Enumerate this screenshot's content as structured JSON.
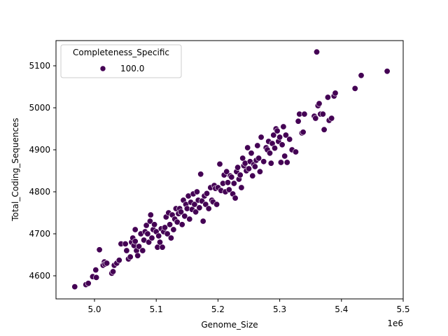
{
  "chart_data": {
    "type": "scatter",
    "title": "",
    "xlabel": "Genome_Size",
    "ylabel": "Total_Coding_Sequences",
    "x_offset_label": "1e6",
    "xlim": [
      4.945,
      5.5
    ],
    "ylim": [
      4546,
      5152
    ],
    "x_ticks": [
      5.0,
      5.1,
      5.2,
      5.3,
      5.4,
      5.5
    ],
    "x_tick_labels": [
      "5.0",
      "5.1",
      "5.2",
      "5.3",
      "5.4",
      "5.5"
    ],
    "y_ticks": [
      4600,
      4700,
      4800,
      4900,
      5000,
      5100
    ],
    "y_tick_labels": [
      "4600",
      "4700",
      "4800",
      "4900",
      "5000",
      "5100"
    ],
    "grid": false,
    "legend": {
      "title": "Completeness_Specific",
      "position": "upper left",
      "entries": [
        {
          "label": "100.0",
          "color": "#440154"
        }
      ]
    },
    "series": [
      {
        "name": "100.0",
        "color": "#440154",
        "points": [
          [
            4.968,
            4574
          ],
          [
            4.986,
            4579
          ],
          [
            4.99,
            4582
          ],
          [
            4.997,
            4598
          ],
          [
            5.003,
            4596
          ],
          [
            5.002,
            4614
          ],
          [
            5.008,
            4662
          ],
          [
            5.014,
            4625
          ],
          [
            5.016,
            4633
          ],
          [
            5.017,
            4628
          ],
          [
            5.02,
            4630
          ],
          [
            5.028,
            4606
          ],
          [
            5.03,
            4610
          ],
          [
            5.032,
            4625
          ],
          [
            5.036,
            4630
          ],
          [
            5.04,
            4637
          ],
          [
            5.043,
            4676
          ],
          [
            5.05,
            4676
          ],
          [
            5.052,
            4660
          ],
          [
            5.055,
            4640
          ],
          [
            5.058,
            4645
          ],
          [
            5.06,
            4680
          ],
          [
            5.062,
            4690
          ],
          [
            5.064,
            4672
          ],
          [
            5.066,
            4710
          ],
          [
            5.066,
            4682
          ],
          [
            5.068,
            4660
          ],
          [
            5.07,
            4648
          ],
          [
            5.072,
            4670
          ],
          [
            5.075,
            4700
          ],
          [
            5.078,
            4660
          ],
          [
            5.08,
            4685
          ],
          [
            5.082,
            4705
          ],
          [
            5.084,
            4720
          ],
          [
            5.086,
            4700
          ],
          [
            5.088,
            4680
          ],
          [
            5.09,
            4730
          ],
          [
            5.091,
            4745
          ],
          [
            5.093,
            4690
          ],
          [
            5.095,
            4710
          ],
          [
            5.097,
            4722
          ],
          [
            5.1,
            4705
          ],
          [
            5.102,
            4668
          ],
          [
            5.104,
            4695
          ],
          [
            5.106,
            4680
          ],
          [
            5.108,
            4712
          ],
          [
            5.11,
            4668
          ],
          [
            5.112,
            4705
          ],
          [
            5.114,
            4715
          ],
          [
            5.116,
            4740
          ],
          [
            5.118,
            4700
          ],
          [
            5.12,
            4750
          ],
          [
            5.122,
            4722
          ],
          [
            5.124,
            4690
          ],
          [
            5.126,
            4745
          ],
          [
            5.128,
            4710
          ],
          [
            5.13,
            4735
          ],
          [
            5.132,
            4760
          ],
          [
            5.134,
            4728
          ],
          [
            5.136,
            4748
          ],
          [
            5.138,
            4760
          ],
          [
            5.14,
            4752
          ],
          [
            5.142,
            4722
          ],
          [
            5.144,
            4780
          ],
          [
            5.146,
            4742
          ],
          [
            5.148,
            4770
          ],
          [
            5.15,
            4760
          ],
          [
            5.152,
            4790
          ],
          [
            5.154,
            4735
          ],
          [
            5.156,
            4775
          ],
          [
            5.158,
            4758
          ],
          [
            5.16,
            4795
          ],
          [
            5.162,
            4770
          ],
          [
            5.164,
            4752
          ],
          [
            5.166,
            4800
          ],
          [
            5.168,
            4780
          ],
          [
            5.17,
            4762
          ],
          [
            5.172,
            4842
          ],
          [
            5.174,
            4778
          ],
          [
            5.176,
            4730
          ],
          [
            5.178,
            4790
          ],
          [
            5.18,
            4770
          ],
          [
            5.182,
            4796
          ],
          [
            5.185,
            4760
          ],
          [
            5.188,
            4810
          ],
          [
            5.19,
            4780
          ],
          [
            5.192,
            4776
          ],
          [
            5.194,
            4815
          ],
          [
            5.196,
            4808
          ],
          [
            5.198,
            4770
          ],
          [
            5.2,
            4810
          ],
          [
            5.203,
            4866
          ],
          [
            5.205,
            4803
          ],
          [
            5.208,
            4820
          ],
          [
            5.21,
            4840
          ],
          [
            5.212,
            4800
          ],
          [
            5.214,
            4848
          ],
          [
            5.216,
            4822
          ],
          [
            5.218,
            4805
          ],
          [
            5.22,
            4838
          ],
          [
            5.222,
            4835
          ],
          [
            5.224,
            4795
          ],
          [
            5.226,
            4820
          ],
          [
            5.228,
            4785
          ],
          [
            5.23,
            4848
          ],
          [
            5.232,
            4858
          ],
          [
            5.234,
            4830
          ],
          [
            5.236,
            4840
          ],
          [
            5.238,
            4810
          ],
          [
            5.24,
            4880
          ],
          [
            5.242,
            4862
          ],
          [
            5.244,
            4868
          ],
          [
            5.246,
            4850
          ],
          [
            5.248,
            4905
          ],
          [
            5.25,
            4855
          ],
          [
            5.252,
            4872
          ],
          [
            5.254,
            4892
          ],
          [
            5.256,
            4838
          ],
          [
            5.258,
            4865
          ],
          [
            5.26,
            4860
          ],
          [
            5.262,
            4875
          ],
          [
            5.264,
            4910
          ],
          [
            5.266,
            4880
          ],
          [
            5.268,
            4848
          ],
          [
            5.27,
            4930
          ],
          [
            5.274,
            4872
          ],
          [
            5.278,
            4905
          ],
          [
            5.28,
            4900
          ],
          [
            5.282,
            4920
          ],
          [
            5.284,
            4892
          ],
          [
            5.286,
            4868
          ],
          [
            5.288,
            4915
          ],
          [
            5.29,
            4935
          ],
          [
            5.292,
            4904
          ],
          [
            5.294,
            4950
          ],
          [
            5.296,
            4945
          ],
          [
            5.298,
            4920
          ],
          [
            5.3,
            4930
          ],
          [
            5.302,
            4870
          ],
          [
            5.304,
            4912
          ],
          [
            5.306,
            4955
          ],
          [
            5.308,
            4885
          ],
          [
            5.31,
            4935
          ],
          [
            5.312,
            4870
          ],
          [
            5.316,
            4925
          ],
          [
            5.32,
            4900
          ],
          [
            5.326,
            4895
          ],
          [
            5.33,
            4968
          ],
          [
            5.332,
            4985
          ],
          [
            5.336,
            4940
          ],
          [
            5.338,
            4942
          ],
          [
            5.34,
            4985
          ],
          [
            5.356,
            4980
          ],
          [
            5.358,
            4975
          ],
          [
            5.36,
            5133
          ],
          [
            5.362,
            5005
          ],
          [
            5.364,
            5010
          ],
          [
            5.366,
            4985
          ],
          [
            5.37,
            4985
          ],
          [
            5.372,
            4948
          ],
          [
            5.378,
            5025
          ],
          [
            5.38,
            4970
          ],
          [
            5.384,
            4975
          ],
          [
            5.388,
            5028
          ],
          [
            5.39,
            5035
          ],
          [
            5.422,
            5046
          ],
          [
            5.432,
            5077
          ],
          [
            5.474,
            5087
          ]
        ]
      }
    ]
  },
  "figure": {
    "background": "#ffffff",
    "marker_color": "#440154",
    "marker_edge": "#ffffff"
  }
}
